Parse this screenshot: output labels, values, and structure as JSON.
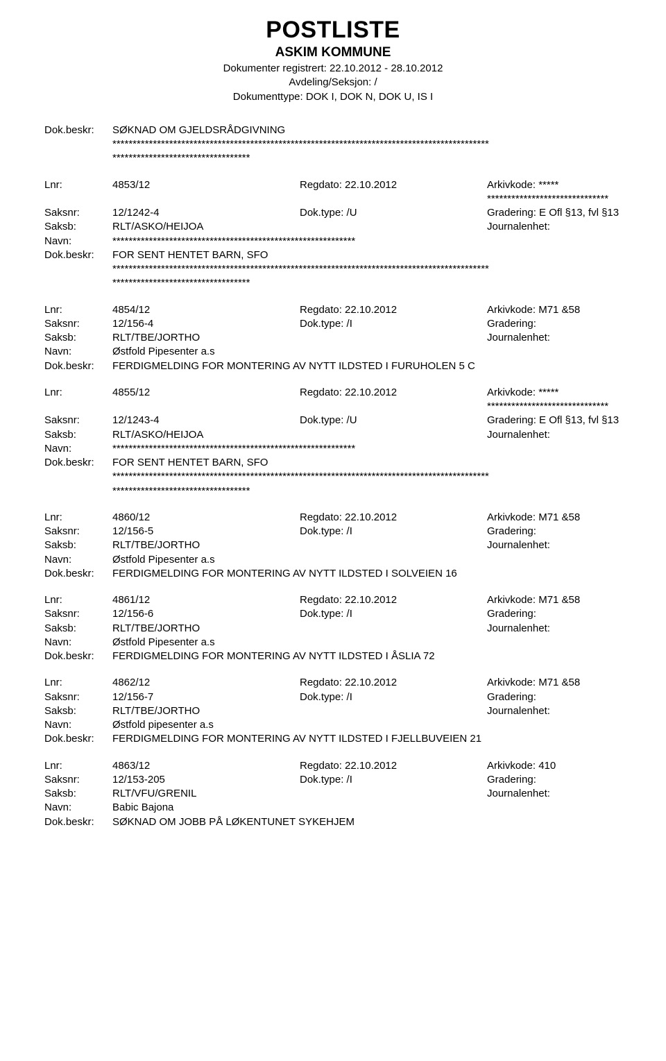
{
  "header": {
    "main_title": "POSTLISTE",
    "sub_title": "ASKIM KOMMUNE",
    "line1": "Dokumenter registrert: 22.10.2012 - 28.10.2012",
    "line2": "Avdeling/Seksjon: /",
    "line3": "Dokumenttype: DOK I, DOK N, DOK U, IS I"
  },
  "labels": {
    "lnr": "Lnr:",
    "saksnr": "Saksnr:",
    "saksb": "Saksb:",
    "navn": "Navn:",
    "dokbeskr": "Dok.beskr:",
    "regdato": "Regdato:",
    "doktype": "Dok.type:",
    "arkivkode": "Arkivkode:",
    "gradering": "Gradering:",
    "journalenhet": "Journalenhet:"
  },
  "top_block": {
    "beskr_label": "Dok.beskr:",
    "beskr_text": "SØKNAD OM GJELDSRÅDGIVNING",
    "stars1": "*********************************************************************************************",
    "stars2": "**********************************"
  },
  "entries": [
    {
      "lnr": "4853/12",
      "regdato": "22.10.2012",
      "arkivkode": "***** ******************************",
      "saksnr": "12/1242-4",
      "doktype": "/U",
      "gradering": "E Ofl §13, fvl §13",
      "saksb": "RLT/ASKO/HEIJOA",
      "navn": "************************************************************",
      "beskr": "FOR SENT HENTET BARN, SFO",
      "trailing": true
    },
    {
      "lnr": "4854/12",
      "regdato": "22.10.2012",
      "arkivkode": "M71 &58",
      "saksnr": "12/156-4",
      "doktype": "/I",
      "gradering": "",
      "saksb": "RLT/TBE/JORTHO",
      "navn": "Østfold Pipesenter a.s",
      "beskr": "FERDIGMELDING FOR MONTERING AV NYTT ILDSTED I FURUHOLEN 5 C",
      "trailing": false
    },
    {
      "lnr": "4855/12",
      "regdato": "22.10.2012",
      "arkivkode": "***** ******************************",
      "saksnr": "12/1243-4",
      "doktype": "/U",
      "gradering": "E Ofl §13, fvl §13",
      "saksb": "RLT/ASKO/HEIJOA",
      "navn": "************************************************************",
      "beskr": "FOR SENT HENTET BARN, SFO",
      "trailing": true
    },
    {
      "lnr": "4860/12",
      "regdato": "22.10.2012",
      "arkivkode": "M71 &58",
      "saksnr": "12/156-5",
      "doktype": "/I",
      "gradering": "",
      "saksb": "RLT/TBE/JORTHO",
      "navn": "Østfold Pipesenter a.s",
      "beskr": "FERDIGMELDING FOR MONTERING AV NYTT ILDSTED I SOLVEIEN 16",
      "trailing": false
    },
    {
      "lnr": "4861/12",
      "regdato": "22.10.2012",
      "arkivkode": "M71 &58",
      "saksnr": "12/156-6",
      "doktype": "/I",
      "gradering": "",
      "saksb": "RLT/TBE/JORTHO",
      "navn": "Østfold Pipesenter a.s",
      "beskr": "FERDIGMELDING FOR MONTERING AV NYTT ILDSTED I ÅSLIA 72",
      "trailing": false
    },
    {
      "lnr": "4862/12",
      "regdato": "22.10.2012",
      "arkivkode": "M71 &58",
      "saksnr": "12/156-7",
      "doktype": "/I",
      "gradering": "",
      "saksb": "RLT/TBE/JORTHO",
      "navn": "Østfold pipesenter a.s",
      "beskr": "FERDIGMELDING FOR MONTERING AV NYTT ILDSTED I FJELLBUVEIEN 21",
      "trailing": false
    },
    {
      "lnr": "4863/12",
      "regdato": "22.10.2012",
      "arkivkode": "410",
      "saksnr": "12/153-205",
      "doktype": "/I",
      "gradering": "",
      "saksb": "RLT/VFU/GRENIL",
      "navn": "Babic Bajona",
      "beskr": "SØKNAD OM JOBB PÅ LØKENTUNET SYKEHJEM",
      "trailing": false
    }
  ],
  "trailing_stars": {
    "line1": "*********************************************************************************************",
    "line2": "**********************************"
  }
}
